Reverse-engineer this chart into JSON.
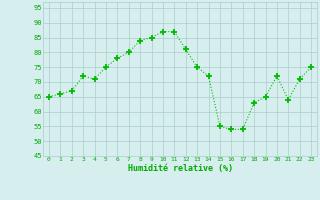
{
  "x": [
    0,
    1,
    2,
    3,
    4,
    5,
    6,
    7,
    8,
    9,
    10,
    11,
    12,
    13,
    14,
    15,
    16,
    17,
    18,
    19,
    20,
    21,
    22,
    23
  ],
  "y": [
    65,
    66,
    67,
    72,
    71,
    75,
    78,
    80,
    84,
    85,
    87,
    87,
    81,
    75,
    72,
    55,
    54,
    54,
    63,
    65,
    72,
    64,
    71,
    75
  ],
  "line_color": "#00bb00",
  "marker_color": "#00bb00",
  "bg_color": "#d6eeee",
  "grid_color": "#aacccc",
  "xlabel": "Humidité relative (%)",
  "xlabel_color": "#00aa00",
  "tick_color": "#00aa00",
  "ylim": [
    45,
    97
  ],
  "xlim": [
    -0.5,
    23.5
  ],
  "yticks": [
    45,
    50,
    55,
    60,
    65,
    70,
    75,
    80,
    85,
    90,
    95
  ],
  "xticks": [
    0,
    1,
    2,
    3,
    4,
    5,
    6,
    7,
    8,
    9,
    10,
    11,
    12,
    13,
    14,
    15,
    16,
    17,
    18,
    19,
    20,
    21,
    22,
    23
  ]
}
